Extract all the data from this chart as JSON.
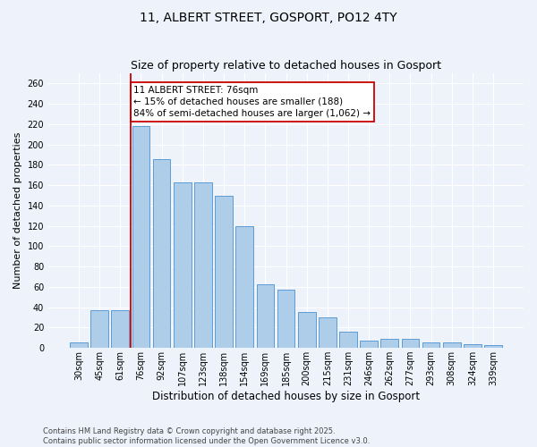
{
  "title": "11, ALBERT STREET, GOSPORT, PO12 4TY",
  "subtitle": "Size of property relative to detached houses in Gosport",
  "xlabel": "Distribution of detached houses by size in Gosport",
  "ylabel": "Number of detached properties",
  "footer_line1": "Contains HM Land Registry data © Crown copyright and database right 2025.",
  "footer_line2": "Contains public sector information licensed under the Open Government Licence v3.0.",
  "annotation_line1": "11 ALBERT STREET: 76sqm",
  "annotation_line2": "← 15% of detached houses are smaller (188)",
  "annotation_line3": "84% of semi-detached houses are larger (1,062) →",
  "categories": [
    "30sqm",
    "45sqm",
    "61sqm",
    "76sqm",
    "92sqm",
    "107sqm",
    "123sqm",
    "138sqm",
    "154sqm",
    "169sqm",
    "185sqm",
    "200sqm",
    "215sqm",
    "231sqm",
    "246sqm",
    "262sqm",
    "277sqm",
    "293sqm",
    "308sqm",
    "324sqm",
    "339sqm"
  ],
  "values": [
    5,
    37,
    37,
    218,
    186,
    163,
    163,
    150,
    120,
    63,
    57,
    35,
    30,
    16,
    7,
    9,
    9,
    5,
    5,
    4,
    3
  ],
  "bar_color": "#aecde8",
  "bar_edge_color": "#5b9bd5",
  "property_line_color": "#cc0000",
  "annotation_box_edge_color": "#cc0000",
  "annotation_box_face_color": "#ffffff",
  "property_bar_index": 3,
  "ylim": [
    0,
    270
  ],
  "yticks": [
    0,
    20,
    40,
    60,
    80,
    100,
    120,
    140,
    160,
    180,
    200,
    220,
    240,
    260
  ],
  "background_color": "#edf2fb",
  "grid_color": "#ffffff",
  "title_fontsize": 10,
  "subtitle_fontsize": 9,
  "xlabel_fontsize": 8.5,
  "ylabel_fontsize": 8,
  "tick_fontsize": 7,
  "annotation_fontsize": 7.5,
  "footer_fontsize": 6
}
